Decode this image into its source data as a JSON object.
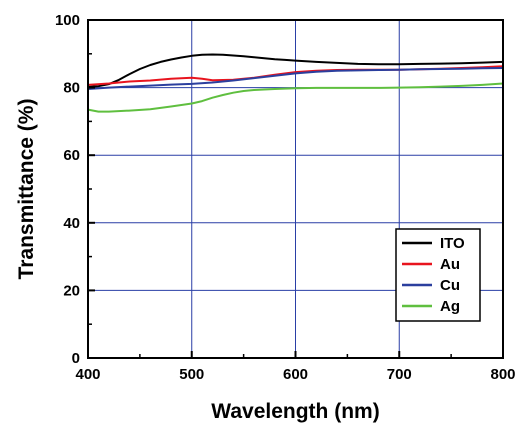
{
  "chart_data": {
    "type": "line",
    "xlabel": "Wavelength (nm)",
    "ylabel": "Transmittance (%)",
    "xlim": [
      400,
      800
    ],
    "ylim": [
      0,
      100
    ],
    "xticks": [
      400,
      500,
      600,
      700,
      800
    ],
    "yticks": [
      0,
      20,
      40,
      60,
      80,
      100
    ],
    "grid": true,
    "legend_position": "bottom-right",
    "series": [
      {
        "name": "ITO",
        "color": "#000000",
        "x": [
          400,
          410,
          420,
          430,
          440,
          450,
          460,
          470,
          480,
          490,
          500,
          510,
          520,
          530,
          540,
          550,
          560,
          570,
          580,
          590,
          600,
          620,
          640,
          660,
          680,
          700,
          720,
          740,
          760,
          780,
          800
        ],
        "y": [
          80.2,
          80.4,
          81,
          82.3,
          84,
          85.5,
          86.7,
          87.6,
          88.3,
          88.9,
          89.4,
          89.7,
          89.8,
          89.7,
          89.5,
          89.3,
          89.0,
          88.7,
          88.4,
          88.2,
          88.0,
          87.6,
          87.3,
          87.0,
          86.9,
          86.9,
          87.0,
          87.1,
          87.2,
          87.4,
          87.6
        ]
      },
      {
        "name": "Au",
        "color": "#e8141e",
        "x": [
          400,
          420,
          440,
          460,
          480,
          500,
          510,
          520,
          540,
          560,
          580,
          600,
          620,
          640,
          660,
          680,
          700,
          720,
          740,
          760,
          780,
          800
        ],
        "y": [
          80.8,
          81.2,
          81.8,
          82.1,
          82.6,
          82.9,
          82.6,
          82.2,
          82.3,
          82.9,
          83.8,
          84.6,
          85.0,
          85.2,
          85.3,
          85.3,
          85.3,
          85.4,
          85.6,
          85.8,
          86.0,
          86.3
        ]
      },
      {
        "name": "Cu",
        "color": "#2b3f9e",
        "x": [
          400,
          420,
          440,
          460,
          480,
          500,
          520,
          540,
          560,
          580,
          600,
          620,
          640,
          660,
          680,
          700,
          720,
          740,
          760,
          780,
          800
        ],
        "y": [
          79.6,
          80.0,
          80.3,
          80.6,
          80.9,
          81.1,
          81.5,
          82.1,
          82.8,
          83.5,
          84.2,
          84.7,
          85.0,
          85.1,
          85.2,
          85.3,
          85.4,
          85.5,
          85.6,
          85.7,
          85.8
        ]
      },
      {
        "name": "Ag",
        "color": "#5fbf3f",
        "x": [
          400,
          410,
          420,
          440,
          460,
          480,
          500,
          510,
          520,
          530,
          540,
          550,
          560,
          580,
          600,
          620,
          640,
          660,
          680,
          700,
          720,
          740,
          760,
          780,
          800
        ],
        "y": [
          73.5,
          72.9,
          72.9,
          73.2,
          73.6,
          74.4,
          75.3,
          76.0,
          77.0,
          77.8,
          78.5,
          79.0,
          79.3,
          79.6,
          79.8,
          79.9,
          79.9,
          79.9,
          79.9,
          80.0,
          80.1,
          80.3,
          80.5,
          80.8,
          81.2
        ]
      }
    ]
  }
}
